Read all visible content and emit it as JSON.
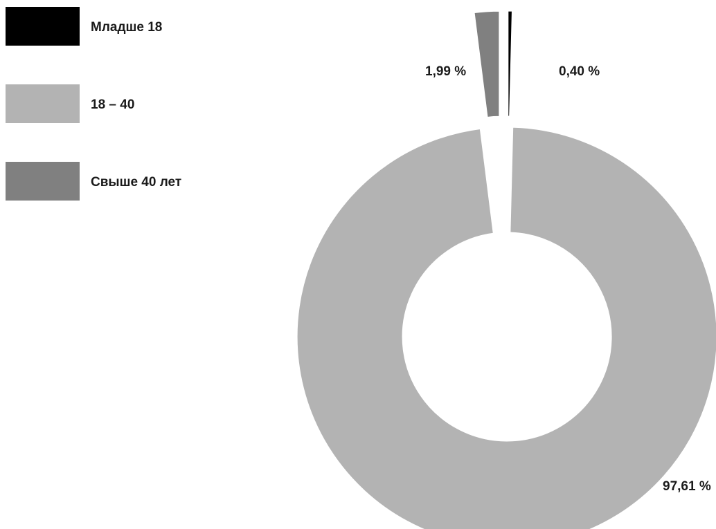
{
  "chart_data": {
    "type": "pie",
    "variant": "donut-exploded",
    "legend_position": "top-left",
    "categories": [
      "Младше 18",
      "18 – 40",
      "Свыше 40 лет"
    ],
    "values": [
      0.4,
      97.61,
      1.99
    ],
    "value_labels": [
      "0,40 %",
      "97,61 %",
      "1,99 %"
    ],
    "colors": [
      "#000000",
      "#b3b3b3",
      "#808080"
    ],
    "start_angle_deg": 0,
    "direction": "clockwise",
    "exploded": true
  }
}
